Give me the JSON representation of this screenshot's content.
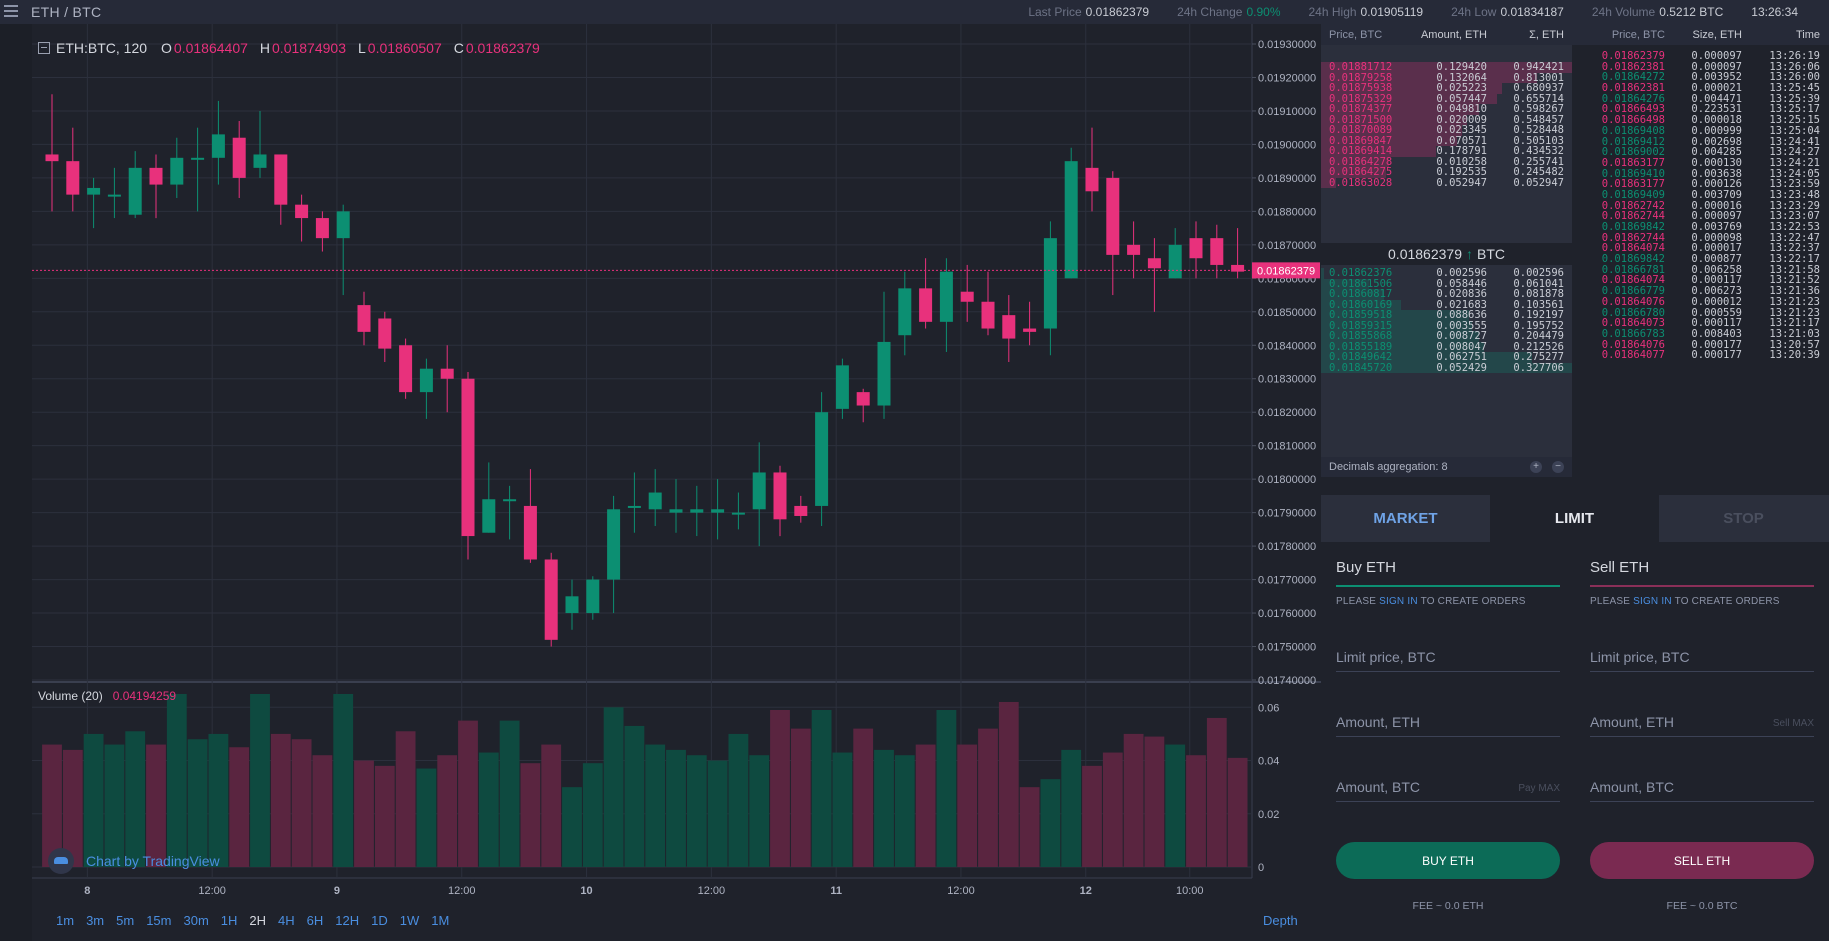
{
  "header": {
    "pair": "ETH / BTC",
    "stats": [
      {
        "label": "Last Price",
        "value": "0.01862379",
        "color": "default"
      },
      {
        "label": "24h Change",
        "value": "0.90%",
        "color": "green"
      },
      {
        "label": "24h High",
        "value": "0.01905119",
        "color": "default"
      },
      {
        "label": "24h Low",
        "value": "0.01834187",
        "color": "default"
      },
      {
        "label": "24h Volume",
        "value": "0.5212 BTC",
        "color": "default"
      }
    ],
    "time": "13:26:34"
  },
  "legend": {
    "symbol": "ETH:BTC, 120",
    "o_label": "O",
    "o": "0.01864407",
    "h_label": "H",
    "h": "0.01874903",
    "l_label": "L",
    "l": "0.01860507",
    "c_label": "C",
    "c": "0.01862379"
  },
  "volume_legend": {
    "label": "Volume (20)",
    "value": "0.04194259"
  },
  "tradingview": "Chart by TradingView",
  "timeframes": [
    "1m",
    "3m",
    "5m",
    "15m",
    "30m",
    "1H",
    "2H",
    "4H",
    "6H",
    "12H",
    "1D",
    "1W",
    "1M"
  ],
  "active_timeframe": "2H",
  "depth_label": "Depth",
  "colors": {
    "up": "#0c8f72",
    "down": "#e8317c",
    "accent": "#4a8ee0"
  },
  "chart_data": {
    "type": "candlestick",
    "price_axis": {
      "min": 0.0174,
      "max": 0.0193,
      "ticks": [
        "0.01930000",
        "0.01920000",
        "0.01910000",
        "0.01900000",
        "0.01890000",
        "0.01880000",
        "0.01870000",
        "0.01860000",
        "0.01850000",
        "0.01840000",
        "0.01830000",
        "0.01820000",
        "0.01810000",
        "0.01800000",
        "0.01790000",
        "0.01780000",
        "0.01770000",
        "0.01760000",
        "0.01750000",
        "0.01740000"
      ],
      "last_price_label": "0.01862379",
      "last_price": 0.01862379
    },
    "volume_axis": {
      "min": 0,
      "max": 0.065,
      "ticks": [
        "0.06",
        "0.04",
        "0.02",
        "0"
      ]
    },
    "x_axis_labels": [
      {
        "label": "8",
        "index": 1.7,
        "bold": true
      },
      {
        "label": "12:00",
        "index": 7.7,
        "bold": false
      },
      {
        "label": "9",
        "index": 13.7,
        "bold": true
      },
      {
        "label": "12:00",
        "index": 19.7,
        "bold": false
      },
      {
        "label": "10",
        "index": 25.7,
        "bold": true
      },
      {
        "label": "12:00",
        "index": 31.7,
        "bold": false
      },
      {
        "label": "11",
        "index": 37.7,
        "bold": true
      },
      {
        "label": "12:00",
        "index": 43.7,
        "bold": false
      },
      {
        "label": "12",
        "index": 49.7,
        "bold": true
      },
      {
        "label": "10:00",
        "index": 54.7,
        "bold": false
      }
    ],
    "candles": [
      [
        0.01897,
        0.01895,
        0.01915,
        0.0188
      ],
      [
        0.01895,
        0.01885,
        0.01905,
        0.0188
      ],
      [
        0.01885,
        0.01887,
        0.0189,
        0.01875
      ],
      [
        0.01885,
        0.01885,
        0.01893,
        0.01878
      ],
      [
        0.01879,
        0.01893,
        0.01898,
        0.01878
      ],
      [
        0.01893,
        0.01888,
        0.01897,
        0.01878
      ],
      [
        0.01888,
        0.01896,
        0.01902,
        0.01884
      ],
      [
        0.01896,
        0.01896,
        0.01905,
        0.0188
      ],
      [
        0.01896,
        0.01903,
        0.01913,
        0.01888
      ],
      [
        0.01902,
        0.0189,
        0.01907,
        0.01884
      ],
      [
        0.01893,
        0.01897,
        0.0191,
        0.0189
      ],
      [
        0.01897,
        0.01882,
        0.01897,
        0.01876
      ],
      [
        0.01882,
        0.01878,
        0.01885,
        0.01871
      ],
      [
        0.01878,
        0.01872,
        0.0188,
        0.01868
      ],
      [
        0.01872,
        0.0188,
        0.01882,
        0.01855
      ],
      [
        0.01852,
        0.01844,
        0.01856,
        0.0184
      ],
      [
        0.01848,
        0.01839,
        0.0185,
        0.01835
      ],
      [
        0.0184,
        0.01826,
        0.01842,
        0.01824
      ],
      [
        0.01826,
        0.01833,
        0.01836,
        0.01818
      ],
      [
        0.01833,
        0.0183,
        0.0184,
        0.0182
      ],
      [
        0.0183,
        0.01783,
        0.01832,
        0.01776
      ],
      [
        0.01784,
        0.01794,
        0.01805,
        0.01784
      ],
      [
        0.01794,
        0.01794,
        0.01798,
        0.01782
      ],
      [
        0.01792,
        0.01776,
        0.01803,
        0.01775
      ],
      [
        0.01776,
        0.01752,
        0.01778,
        0.0175
      ],
      [
        0.0176,
        0.01765,
        0.0177,
        0.01755
      ],
      [
        0.0176,
        0.0177,
        0.01771,
        0.01758
      ],
      [
        0.0177,
        0.01791,
        0.01795,
        0.0176
      ],
      [
        0.01792,
        0.01792,
        0.01802,
        0.01784
      ],
      [
        0.01791,
        0.01796,
        0.01803,
        0.01786
      ],
      [
        0.0179,
        0.01791,
        0.018,
        0.01784
      ],
      [
        0.0179,
        0.01791,
        0.01798,
        0.01783
      ],
      [
        0.0179,
        0.01791,
        0.018,
        0.01782
      ],
      [
        0.0179,
        0.0179,
        0.01796,
        0.01785
      ],
      [
        0.01791,
        0.01802,
        0.01811,
        0.0178
      ],
      [
        0.01802,
        0.01788,
        0.01804,
        0.01783
      ],
      [
        0.01792,
        0.01789,
        0.01795,
        0.01787
      ],
      [
        0.01792,
        0.0182,
        0.01826,
        0.01786
      ],
      [
        0.01821,
        0.01834,
        0.01836,
        0.01818
      ],
      [
        0.01826,
        0.01822,
        0.01827,
        0.01817
      ],
      [
        0.01822,
        0.01841,
        0.01856,
        0.01818
      ],
      [
        0.01843,
        0.01857,
        0.01862,
        0.01837
      ],
      [
        0.01857,
        0.01847,
        0.01866,
        0.01845
      ],
      [
        0.01847,
        0.01862,
        0.01866,
        0.01838
      ],
      [
        0.01856,
        0.01853,
        0.01864,
        0.01847
      ],
      [
        0.01853,
        0.01845,
        0.01862,
        0.01843
      ],
      [
        0.01849,
        0.01842,
        0.01855,
        0.01835
      ],
      [
        0.01845,
        0.01844,
        0.01853,
        0.0184
      ],
      [
        0.01845,
        0.01872,
        0.01877,
        0.01837
      ],
      [
        0.0186,
        0.01895,
        0.01899,
        0.0186
      ],
      [
        0.01893,
        0.01886,
        0.01905,
        0.0188
      ],
      [
        0.0189,
        0.01867,
        0.01892,
        0.01855
      ],
      [
        0.0187,
        0.01867,
        0.01877,
        0.0186
      ],
      [
        0.01866,
        0.01863,
        0.01872,
        0.0185
      ],
      [
        0.0186,
        0.0187,
        0.01875,
        0.0186
      ],
      [
        0.01872,
        0.01866,
        0.01877,
        0.0186
      ],
      [
        0.01872,
        0.01864,
        0.01876,
        0.0186
      ],
      [
        0.01864,
        0.01862,
        0.01875,
        0.0186
      ]
    ],
    "volumes": [
      0.046,
      0.044,
      0.05,
      0.046,
      0.051,
      0.046,
      0.065,
      0.048,
      0.05,
      0.045,
      0.065,
      0.05,
      0.048,
      0.042,
      0.065,
      0.04,
      0.038,
      0.051,
      0.037,
      0.042,
      0.055,
      0.043,
      0.055,
      0.039,
      0.046,
      0.03,
      0.039,
      0.06,
      0.053,
      0.046,
      0.044,
      0.042,
      0.04,
      0.05,
      0.042,
      0.059,
      0.052,
      0.059,
      0.043,
      0.052,
      0.044,
      0.042,
      0.046,
      0.059,
      0.046,
      0.052,
      0.062,
      0.03,
      0.033,
      0.044,
      0.038,
      0.043,
      0.05,
      0.049,
      0.046,
      0.042,
      0.056,
      0.041
    ]
  },
  "orderbook": {
    "headers": {
      "price": "Price, BTC",
      "amount": "Amount, ETH",
      "sum": "Σ, ETH"
    },
    "asks": [
      {
        "price": "0.01881712",
        "amount": "0.129420",
        "sum": "0.942421",
        "depth": 1.0
      },
      {
        "price": "0.01879258",
        "amount": "0.132064",
        "sum": "0.813001",
        "depth": 0.86
      },
      {
        "price": "0.01875938",
        "amount": "0.025223",
        "sum": "0.680937",
        "depth": 0.72
      },
      {
        "price": "0.01875329",
        "amount": "0.057447",
        "sum": "0.655714",
        "depth": 0.7
      },
      {
        "price": "0.01874377",
        "amount": "0.049810",
        "sum": "0.598267",
        "depth": 0.63
      },
      {
        "price": "0.01871500",
        "amount": "0.020009",
        "sum": "0.548457",
        "depth": 0.58
      },
      {
        "price": "0.01870089",
        "amount": "0.023345",
        "sum": "0.528448",
        "depth": 0.56
      },
      {
        "price": "0.01869847",
        "amount": "0.070571",
        "sum": "0.505103",
        "depth": 0.54
      },
      {
        "price": "0.01869414",
        "amount": "0.178791",
        "sum": "0.434532",
        "depth": 0.46
      },
      {
        "price": "0.01864278",
        "amount": "0.010258",
        "sum": "0.255741",
        "depth": 0.27
      },
      {
        "price": "0.01864275",
        "amount": "0.192535",
        "sum": "0.245482",
        "depth": 0.26
      },
      {
        "price": "0.01863028",
        "amount": "0.052947",
        "sum": "0.052947",
        "depth": 0.06
      }
    ],
    "mid_price": "0.01862379",
    "mid_arrow": "↑",
    "mid_unit": "BTC",
    "bids": [
      {
        "price": "0.01862376",
        "amount": "0.002596",
        "sum": "0.002596",
        "depth": 0.01
      },
      {
        "price": "0.01861506",
        "amount": "0.058446",
        "sum": "0.061041",
        "depth": 0.19
      },
      {
        "price": "0.01860817",
        "amount": "0.020836",
        "sum": "0.081878",
        "depth": 0.25
      },
      {
        "price": "0.01860169",
        "amount": "0.021683",
        "sum": "0.103561",
        "depth": 0.32
      },
      {
        "price": "0.01859518",
        "amount": "0.088636",
        "sum": "0.192197",
        "depth": 0.59
      },
      {
        "price": "0.01859315",
        "amount": "0.003555",
        "sum": "0.195752",
        "depth": 0.6
      },
      {
        "price": "0.01855868",
        "amount": "0.008727",
        "sum": "0.204479",
        "depth": 0.63
      },
      {
        "price": "0.01855189",
        "amount": "0.008047",
        "sum": "0.212526",
        "depth": 0.65
      },
      {
        "price": "0.01849642",
        "amount": "0.062751",
        "sum": "0.275277",
        "depth": 0.84
      },
      {
        "price": "0.01845720",
        "amount": "0.052429",
        "sum": "0.327706",
        "depth": 1.0
      }
    ],
    "decimals_label": "Decimals aggregation: 8",
    "plus": "+",
    "minus": "−"
  },
  "trades": {
    "headers": {
      "price": "Price, BTC",
      "size": "Size, ETH",
      "time": "Time"
    },
    "rows": [
      {
        "price": "0.01862379",
        "size": "0.000097",
        "time": "13:26:19",
        "side": "sell"
      },
      {
        "price": "0.01862381",
        "size": "0.000097",
        "time": "13:26:06",
        "side": "sell"
      },
      {
        "price": "0.01864272",
        "size": "0.003952",
        "time": "13:26:00",
        "side": "buy"
      },
      {
        "price": "0.01862381",
        "size": "0.000021",
        "time": "13:25:45",
        "side": "sell"
      },
      {
        "price": "0.01864276",
        "size": "0.004471",
        "time": "13:25:39",
        "side": "buy"
      },
      {
        "price": "0.01866493",
        "size": "0.223531",
        "time": "13:25:17",
        "side": "sell"
      },
      {
        "price": "0.01866498",
        "size": "0.000018",
        "time": "13:25:15",
        "side": "sell"
      },
      {
        "price": "0.01869408",
        "size": "0.000999",
        "time": "13:25:04",
        "side": "buy"
      },
      {
        "price": "0.01869412",
        "size": "0.002698",
        "time": "13:24:41",
        "side": "buy"
      },
      {
        "price": "0.01869002",
        "size": "0.004285",
        "time": "13:24:27",
        "side": "buy"
      },
      {
        "price": "0.01863177",
        "size": "0.000130",
        "time": "13:24:21",
        "side": "sell"
      },
      {
        "price": "0.01869410",
        "size": "0.003638",
        "time": "13:24:05",
        "side": "buy"
      },
      {
        "price": "0.01863177",
        "size": "0.000126",
        "time": "13:23:59",
        "side": "sell"
      },
      {
        "price": "0.01869409",
        "size": "0.003709",
        "time": "13:23:48",
        "side": "buy"
      },
      {
        "price": "0.01862742",
        "size": "0.000016",
        "time": "13:23:29",
        "side": "sell"
      },
      {
        "price": "0.01862744",
        "size": "0.000097",
        "time": "13:23:07",
        "side": "sell"
      },
      {
        "price": "0.01869842",
        "size": "0.003769",
        "time": "13:22:53",
        "side": "buy"
      },
      {
        "price": "0.01862744",
        "size": "0.000098",
        "time": "13:22:47",
        "side": "sell"
      },
      {
        "price": "0.01864074",
        "size": "0.000017",
        "time": "13:22:37",
        "side": "sell"
      },
      {
        "price": "0.01869842",
        "size": "0.000877",
        "time": "13:22:17",
        "side": "buy"
      },
      {
        "price": "0.01866781",
        "size": "0.006258",
        "time": "13:21:58",
        "side": "buy"
      },
      {
        "price": "0.01864074",
        "size": "0.000117",
        "time": "13:21:52",
        "side": "sell"
      },
      {
        "price": "0.01866779",
        "size": "0.006273",
        "time": "13:21:36",
        "side": "buy"
      },
      {
        "price": "0.01864076",
        "size": "0.000012",
        "time": "13:21:23",
        "side": "sell"
      },
      {
        "price": "0.01866780",
        "size": "0.000559",
        "time": "13:21:23",
        "side": "buy"
      },
      {
        "price": "0.01864073",
        "size": "0.000117",
        "time": "13:21:17",
        "side": "sell"
      },
      {
        "price": "0.01866783",
        "size": "0.008403",
        "time": "13:21:03",
        "side": "buy"
      },
      {
        "price": "0.01864076",
        "size": "0.000177",
        "time": "13:20:57",
        "side": "sell"
      },
      {
        "price": "0.01864077",
        "size": "0.000177",
        "time": "13:20:39",
        "side": "sell"
      }
    ]
  },
  "orderform": {
    "tabs": [
      {
        "label": "MARKET",
        "key": "market"
      },
      {
        "label": "LIMIT",
        "key": "limit"
      },
      {
        "label": "STOP",
        "key": "stop"
      }
    ],
    "buy": {
      "title": "Buy ETH",
      "note_prefix": "PLEASE",
      "note_link": "SIGN IN",
      "note_suffix": "TO CREATE ORDERS",
      "limit_placeholder": "Limit price, BTC",
      "amount_eth_placeholder": "Amount, ETH",
      "amount_btc_placeholder": "Amount, BTC",
      "amount_btc_aux": "Pay MAX",
      "submit": "BUY ETH",
      "fee": "FEE ~ 0.0 ETH"
    },
    "sell": {
      "title": "Sell ETH",
      "note_prefix": "PLEASE",
      "note_link": "SIGN IN",
      "note_suffix": "TO CREATE ORDERS",
      "limit_placeholder": "Limit price, BTC",
      "amount_eth_placeholder": "Amount, ETH",
      "amount_eth_aux": "Sell MAX",
      "amount_btc_placeholder": "Amount, BTC",
      "submit": "SELL ETH",
      "fee": "FEE ~ 0.0 BTC"
    }
  }
}
